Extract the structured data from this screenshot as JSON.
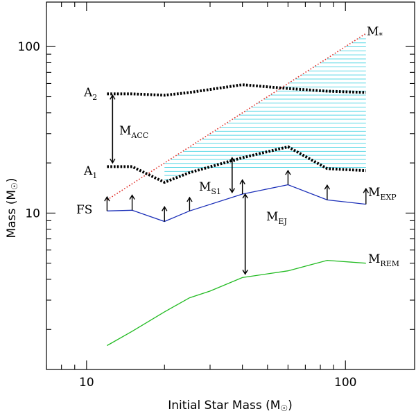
{
  "chart_data": {
    "type": "line",
    "title": "",
    "xlabel": "Initial Star Mass (M",
    "xlabel_sun": "☉",
    "xlabel_close": ")",
    "ylabel": "Mass (M",
    "ylabel_sun": "☉",
    "ylabel_close": ")",
    "xscale": "log",
    "yscale": "log",
    "xlim": [
      7,
      185
    ],
    "ylim": [
      1.15,
      185
    ],
    "grid": false,
    "x_tick_labels": [
      {
        "value": 10,
        "label": "10"
      },
      {
        "value": 100,
        "label": "100"
      }
    ],
    "y_tick_labels": [
      {
        "value": 10,
        "label": "10"
      },
      {
        "value": 100,
        "label": "100"
      }
    ],
    "series": [
      {
        "name": "M*",
        "style": "dotted",
        "color": "#e0302a",
        "x": [
          12,
          120
        ],
        "y": [
          12,
          120
        ]
      },
      {
        "name": "A2",
        "style": "thick-dotted",
        "color": "#000000",
        "x": [
          12,
          15,
          20,
          25,
          40,
          60,
          85,
          120
        ],
        "y": [
          52,
          52,
          51,
          53,
          59,
          56,
          54,
          53
        ]
      },
      {
        "name": "A1",
        "style": "thick-dotted",
        "color": "#000000",
        "x": [
          12,
          15,
          20,
          25,
          40,
          60,
          85,
          120
        ],
        "y": [
          19,
          19,
          15.3,
          17.5,
          21.5,
          25,
          18.5,
          18
        ]
      },
      {
        "name": "MEXP",
        "style": "solid",
        "color": "#1a2eb8",
        "x": [
          12,
          15,
          20,
          25,
          40,
          60,
          85,
          120
        ],
        "y": [
          10.3,
          10.4,
          8.9,
          10.3,
          13,
          14.8,
          12,
          11.3
        ]
      },
      {
        "name": "MREM",
        "style": "solid",
        "color": "#22bb22",
        "x": [
          12,
          15,
          20,
          25,
          30,
          40,
          60,
          85,
          120
        ],
        "y": [
          1.6,
          1.95,
          2.55,
          3.1,
          3.4,
          4.1,
          4.5,
          5.2,
          5
        ]
      }
    ],
    "hatch_region": {
      "color": "#5ad8e6",
      "x_range": [
        20,
        120
      ],
      "upper": "M*",
      "lower": "A1"
    },
    "arrows": [
      {
        "x": 12,
        "y_from": 10.3,
        "y_to": 12.5
      },
      {
        "x": 15,
        "y_from": 10.4,
        "y_to": 12.8
      },
      {
        "x": 20,
        "y_from": 8.9,
        "y_to": 10.9
      },
      {
        "x": 25,
        "y_from": 10.3,
        "y_to": 12.4
      },
      {
        "x": 40,
        "y_from": 13,
        "y_to": 15.8
      },
      {
        "x": 60,
        "y_from": 14.8,
        "y_to": 18
      },
      {
        "x": 85,
        "y_from": 12,
        "y_to": 14.7
      },
      {
        "x": 120,
        "y_from": 11.3,
        "y_to": 14
      }
    ],
    "double_arrows": [
      {
        "name": "MACC",
        "x": 12.6,
        "y_top": 51,
        "y_bottom": 20
      },
      {
        "name": "MS1",
        "x": 36.5,
        "y_top": 21.5,
        "y_bottom": 13.3
      },
      {
        "name": "MEJ",
        "x": 41,
        "y_top": 13,
        "y_bottom": 4.3
      }
    ],
    "labels": {
      "mstar": {
        "main": "M",
        "sub": "*"
      },
      "a2": {
        "main": "A",
        "sub": "2"
      },
      "a1": {
        "main": "A",
        "sub": "1"
      },
      "macc": {
        "main": "M",
        "sub": "ACC"
      },
      "ms1": {
        "main": "M",
        "sub": "S1"
      },
      "mexp": {
        "main": "M",
        "sub": "EXP"
      },
      "mej": {
        "main": "M",
        "sub": "EJ"
      },
      "mrem": {
        "main": "M",
        "sub": "REM"
      },
      "fs": {
        "main": "FS"
      }
    }
  }
}
